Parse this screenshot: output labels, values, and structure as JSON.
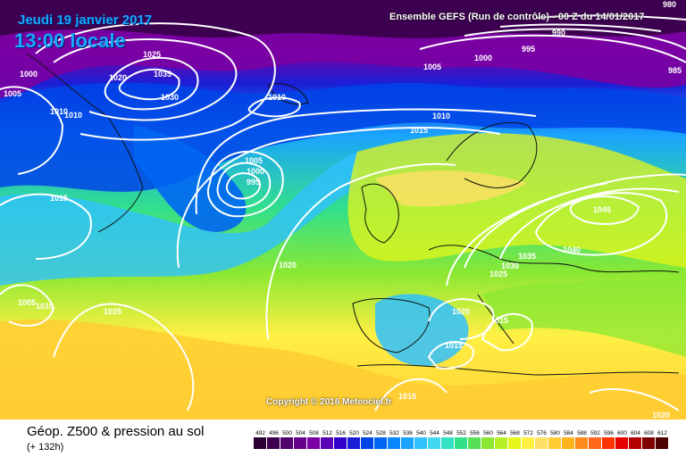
{
  "header": {
    "date": "Jeudi 19 janvier 2017",
    "time": "13:00 locale",
    "run_info": "Ensemble GEFS  (Run de contrôle)  - 00 Z du 14/01/2017"
  },
  "copyright": "Copyright © 2016 Meteociel.fr",
  "footer": {
    "title": "Géop. Z500 & pression au sol",
    "lead": "(+ 132h)"
  },
  "legend": {
    "labels": [
      "492",
      "496",
      "500",
      "504",
      "508",
      "512",
      "516",
      "520",
      "524",
      "528",
      "532",
      "536",
      "540",
      "544",
      "548",
      "552",
      "556",
      "560",
      "564",
      "568",
      "572",
      "576",
      "580",
      "584",
      "588",
      "592",
      "596",
      "600",
      "604",
      "608",
      "612"
    ],
    "colors": [
      "#2b0033",
      "#3d0050",
      "#52006e",
      "#66008a",
      "#7a00a3",
      "#5a00b8",
      "#3300c9",
      "#1a1fd6",
      "#0044e6",
      "#0066f2",
      "#0a88ff",
      "#1aa3ff",
      "#30c0ff",
      "#40d9f0",
      "#33e0c4",
      "#33e08a",
      "#55e055",
      "#8ae833",
      "#b8f026",
      "#e6f51a",
      "#fff044",
      "#ffe066",
      "#ffcc33",
      "#ffb31a",
      "#ff8c1a",
      "#ff661a",
      "#ff3300",
      "#e60000",
      "#b30000",
      "#800000",
      "#4d0000"
    ]
  },
  "isobars": [
    {
      "label": "1025",
      "color": "#ffffff"
    },
    {
      "label": "1020",
      "color": "#ffffff"
    },
    {
      "label": "1035",
      "color": "#ffffff"
    },
    {
      "label": "1030",
      "color": "#ffffff"
    },
    {
      "label": "1000",
      "color": "#ffffff"
    },
    {
      "label": "1005",
      "color": "#ffffff"
    },
    {
      "label": "1010",
      "color": "#ffffff"
    },
    {
      "label": "1005",
      "color": "#ffffff"
    },
    {
      "label": "1000",
      "color": "#ffffff"
    },
    {
      "label": "995",
      "color": "#ffffff"
    },
    {
      "label": "1015",
      "color": "#ffffff"
    },
    {
      "label": "1020",
      "color": "#ffffff"
    },
    {
      "label": "1010",
      "color": "#ffffff"
    },
    {
      "label": "1025",
      "color": "#ffffff"
    },
    {
      "label": "1005",
      "color": "#ffffff"
    },
    {
      "label": "1000",
      "color": "#ffffff"
    },
    {
      "label": "995",
      "color": "#ffffff"
    },
    {
      "label": "990",
      "color": "#ffffff"
    },
    {
      "label": "980",
      "color": "#ffffff"
    },
    {
      "label": "985",
      "color": "#ffffff"
    },
    {
      "label": "1010",
      "color": "#ffffff"
    },
    {
      "label": "1015",
      "color": "#ffffff"
    },
    {
      "label": "1045",
      "color": "#ffffff"
    },
    {
      "label": "1040",
      "color": "#ffffff"
    },
    {
      "label": "1035",
      "color": "#ffffff"
    },
    {
      "label": "1030",
      "color": "#ffffff"
    },
    {
      "label": "1025",
      "color": "#ffffff"
    },
    {
      "label": "1020",
      "color": "#ffffff"
    },
    {
      "label": "1015",
      "color": "#ffffff"
    },
    {
      "label": "1015",
      "color": "#ffffff"
    },
    {
      "label": "1015",
      "color": "#ffffff"
    },
    {
      "label": "1020",
      "color": "#ffffff"
    },
    {
      "label": "1010",
      "color": "#ffffff"
    },
    {
      "label": "1005",
      "color": "#ffffff"
    },
    {
      "label": "1010",
      "color": "#ffffff"
    }
  ]
}
